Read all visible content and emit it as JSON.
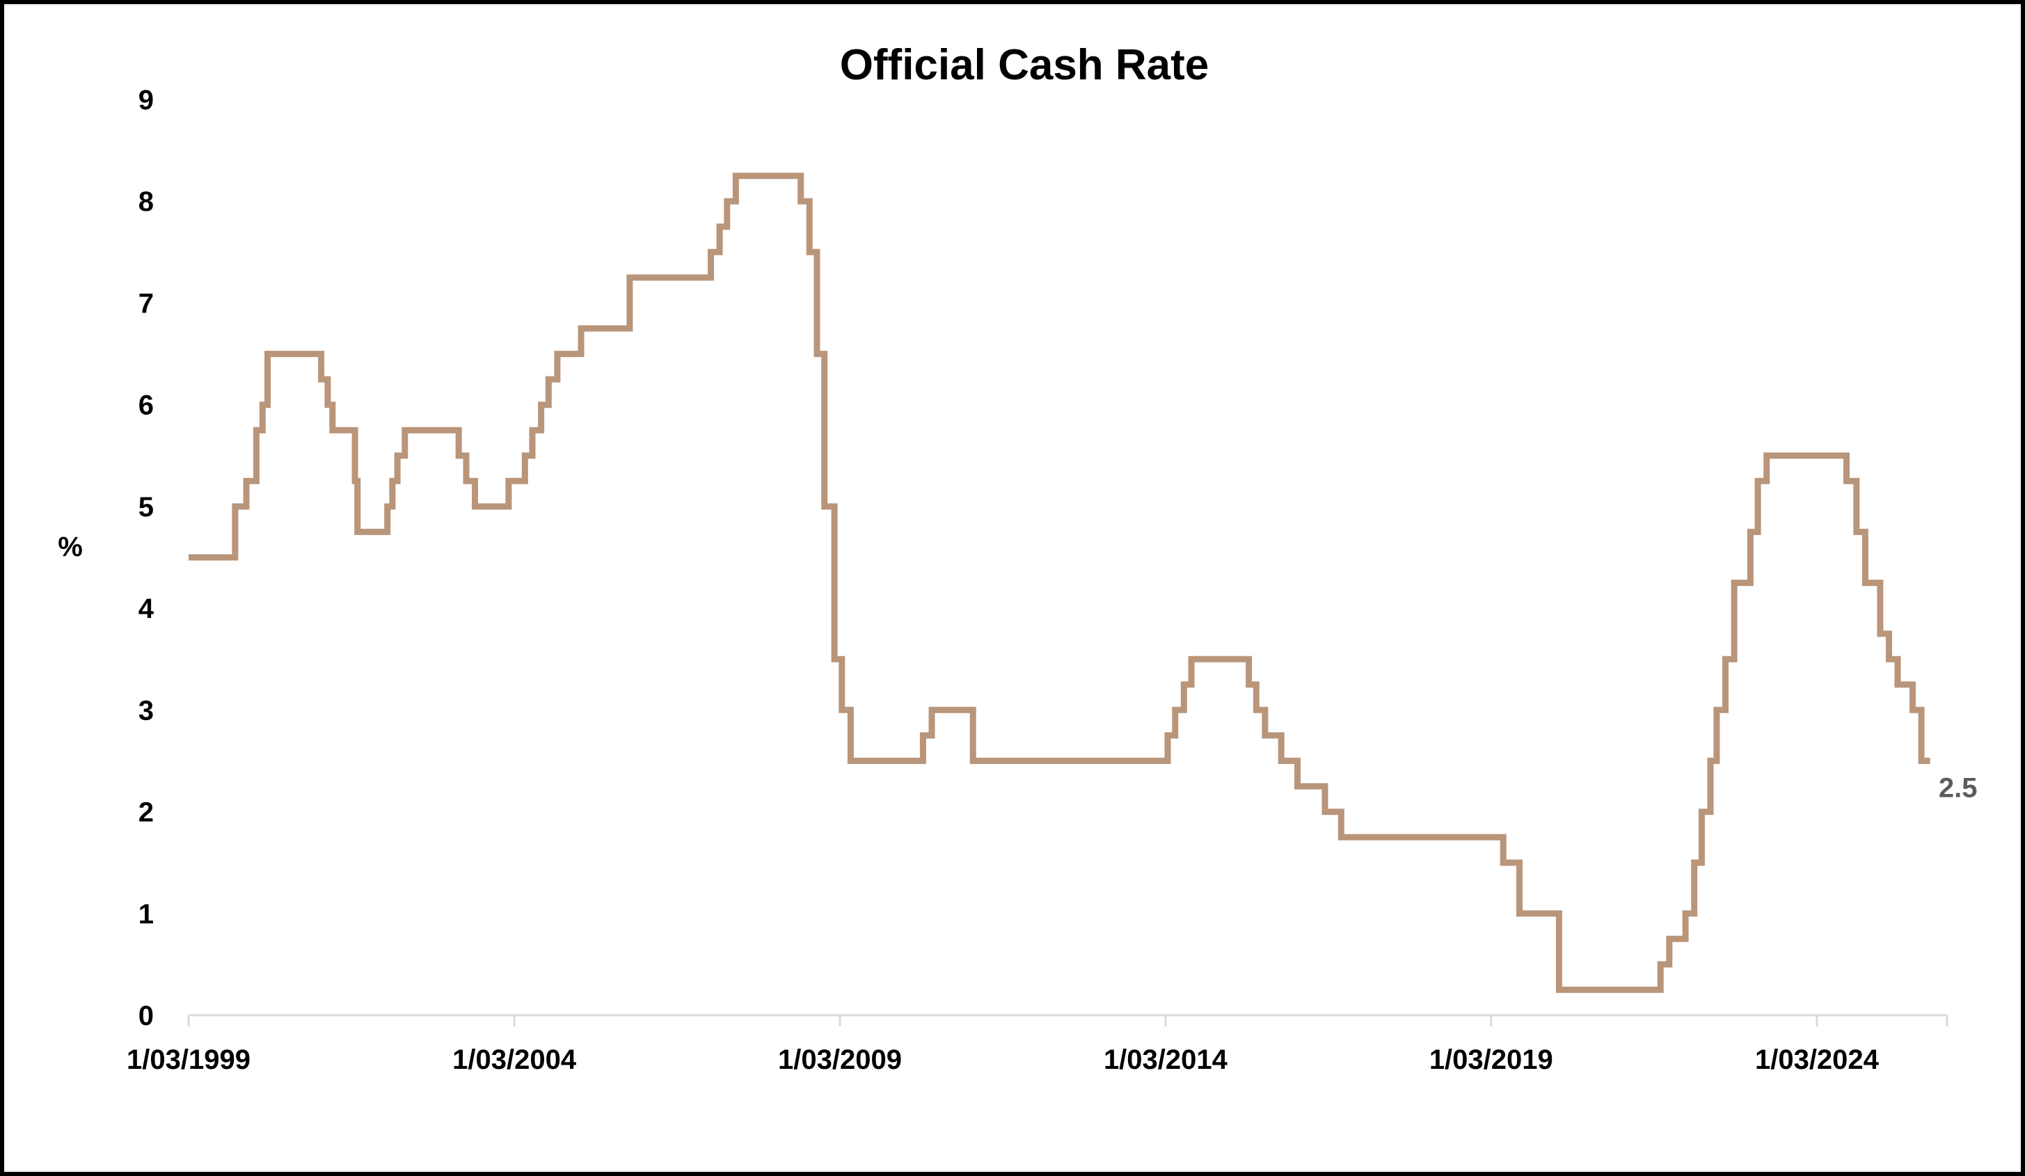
{
  "chart_data": {
    "type": "line",
    "title": "Official Cash Rate",
    "xlabel": "",
    "ylabel": "%",
    "ylim": [
      0,
      9
    ],
    "yticks": [
      0,
      1,
      2,
      3,
      4,
      5,
      6,
      7,
      8,
      9
    ],
    "xlim": [
      "1999-03-01",
      "2026-03-01"
    ],
    "xtick_labels": [
      "1/03/1999",
      "1/03/2004",
      "1/03/2009",
      "1/03/2014",
      "1/03/2019",
      "1/03/2024"
    ],
    "xtick_dates": [
      "1999-03-01",
      "2004-03-01",
      "2009-03-01",
      "2014-03-01",
      "2019-03-01",
      "2024-03-01"
    ],
    "grid": false,
    "legend": "none",
    "line_color": "#B9957A",
    "axis_color": "#D9D9D9",
    "end_label": "2.5",
    "series": [
      {
        "points": [
          [
            "1999-03-01",
            4.5
          ],
          [
            "1999-11-17",
            4.5
          ],
          [
            "1999-11-17",
            5.0
          ],
          [
            "2000-01-19",
            5.0
          ],
          [
            "2000-01-19",
            5.25
          ],
          [
            "2000-03-15",
            5.25
          ],
          [
            "2000-03-15",
            5.75
          ],
          [
            "2000-04-19",
            5.75
          ],
          [
            "2000-04-19",
            6.0
          ],
          [
            "2000-05-17",
            6.0
          ],
          [
            "2000-05-17",
            6.5
          ],
          [
            "2001-03-14",
            6.5
          ],
          [
            "2001-03-14",
            6.25
          ],
          [
            "2001-04-19",
            6.25
          ],
          [
            "2001-04-19",
            6.0
          ],
          [
            "2001-05-16",
            6.0
          ],
          [
            "2001-05-16",
            5.75
          ],
          [
            "2001-09-19",
            5.75
          ],
          [
            "2001-09-19",
            5.25
          ],
          [
            "2001-10-03",
            5.25
          ],
          [
            "2001-10-03",
            4.75
          ],
          [
            "2002-03-20",
            4.75
          ],
          [
            "2002-03-20",
            5.0
          ],
          [
            "2002-04-17",
            5.0
          ],
          [
            "2002-04-17",
            5.25
          ],
          [
            "2002-05-15",
            5.25
          ],
          [
            "2002-05-15",
            5.5
          ],
          [
            "2002-06-26",
            5.5
          ],
          [
            "2002-06-26",
            5.75
          ],
          [
            "2003-04-24",
            5.75
          ],
          [
            "2003-04-24",
            5.5
          ],
          [
            "2003-06-05",
            5.5
          ],
          [
            "2003-06-05",
            5.25
          ],
          [
            "2003-07-24",
            5.25
          ],
          [
            "2003-07-24",
            5.0
          ],
          [
            "2004-01-29",
            5.0
          ],
          [
            "2004-01-29",
            5.25
          ],
          [
            "2004-04-29",
            5.25
          ],
          [
            "2004-04-29",
            5.5
          ],
          [
            "2004-06-10",
            5.5
          ],
          [
            "2004-06-10",
            5.75
          ],
          [
            "2004-07-29",
            5.75
          ],
          [
            "2004-07-29",
            6.0
          ],
          [
            "2004-09-09",
            6.0
          ],
          [
            "2004-09-09",
            6.25
          ],
          [
            "2004-10-28",
            6.25
          ],
          [
            "2004-10-28",
            6.5
          ],
          [
            "2005-03-10",
            6.5
          ],
          [
            "2005-03-10",
            6.75
          ],
          [
            "2005-12-08",
            6.75
          ],
          [
            "2005-12-08",
            7.25
          ],
          [
            "2007-03-08",
            7.25
          ],
          [
            "2007-03-08",
            7.5
          ],
          [
            "2007-04-26",
            7.5
          ],
          [
            "2007-04-26",
            7.75
          ],
          [
            "2007-06-07",
            7.75
          ],
          [
            "2007-06-07",
            8.0
          ],
          [
            "2007-07-26",
            8.0
          ],
          [
            "2007-07-26",
            8.25
          ],
          [
            "2008-07-24",
            8.25
          ],
          [
            "2008-07-24",
            8.0
          ],
          [
            "2008-09-11",
            8.0
          ],
          [
            "2008-09-11",
            7.5
          ],
          [
            "2008-10-23",
            7.5
          ],
          [
            "2008-10-23",
            6.5
          ],
          [
            "2008-12-04",
            6.5
          ],
          [
            "2008-12-04",
            5.0
          ],
          [
            "2009-01-29",
            5.0
          ],
          [
            "2009-01-29",
            3.5
          ],
          [
            "2009-03-12",
            3.5
          ],
          [
            "2009-03-12",
            3.0
          ],
          [
            "2009-04-30",
            3.0
          ],
          [
            "2009-04-30",
            2.5
          ],
          [
            "2010-06-10",
            2.5
          ],
          [
            "2010-06-10",
            2.75
          ],
          [
            "2010-07-29",
            2.75
          ],
          [
            "2010-07-29",
            3.0
          ],
          [
            "2011-03-17",
            3.0
          ],
          [
            "2011-03-17",
            2.5
          ],
          [
            "2014-03-13",
            2.5
          ],
          [
            "2014-03-13",
            2.75
          ],
          [
            "2014-04-24",
            2.75
          ],
          [
            "2014-04-24",
            3.0
          ],
          [
            "2014-06-12",
            3.0
          ],
          [
            "2014-06-12",
            3.25
          ],
          [
            "2014-07-24",
            3.25
          ],
          [
            "2014-07-24",
            3.5
          ],
          [
            "2015-06-11",
            3.5
          ],
          [
            "2015-06-11",
            3.25
          ],
          [
            "2015-07-23",
            3.25
          ],
          [
            "2015-07-23",
            3.0
          ],
          [
            "2015-09-10",
            3.0
          ],
          [
            "2015-09-10",
            2.75
          ],
          [
            "2015-12-10",
            2.75
          ],
          [
            "2015-12-10",
            2.5
          ],
          [
            "2016-03-10",
            2.5
          ],
          [
            "2016-03-10",
            2.25
          ],
          [
            "2016-08-11",
            2.25
          ],
          [
            "2016-08-11",
            2.0
          ],
          [
            "2016-11-10",
            2.0
          ],
          [
            "2016-11-10",
            1.75
          ],
          [
            "2019-05-08",
            1.75
          ],
          [
            "2019-05-08",
            1.5
          ],
          [
            "2019-08-07",
            1.5
          ],
          [
            "2019-08-07",
            1.0
          ],
          [
            "2020-03-16",
            1.0
          ],
          [
            "2020-03-16",
            0.25
          ],
          [
            "2021-10-06",
            0.25
          ],
          [
            "2021-10-06",
            0.5
          ],
          [
            "2021-11-24",
            0.5
          ],
          [
            "2021-11-24",
            0.75
          ],
          [
            "2022-02-23",
            0.75
          ],
          [
            "2022-02-23",
            1.0
          ],
          [
            "2022-04-13",
            1.0
          ],
          [
            "2022-04-13",
            1.5
          ],
          [
            "2022-05-25",
            1.5
          ],
          [
            "2022-05-25",
            2.0
          ],
          [
            "2022-07-13",
            2.0
          ],
          [
            "2022-07-13",
            2.5
          ],
          [
            "2022-08-17",
            2.5
          ],
          [
            "2022-08-17",
            3.0
          ],
          [
            "2022-10-05",
            3.0
          ],
          [
            "2022-10-05",
            3.5
          ],
          [
            "2022-11-23",
            3.5
          ],
          [
            "2022-11-23",
            4.25
          ],
          [
            "2023-02-22",
            4.25
          ],
          [
            "2023-02-22",
            4.75
          ],
          [
            "2023-04-05",
            4.75
          ],
          [
            "2023-04-05",
            5.25
          ],
          [
            "2023-05-24",
            5.25
          ],
          [
            "2023-05-24",
            5.5
          ],
          [
            "2024-08-14",
            5.5
          ],
          [
            "2024-08-14",
            5.25
          ],
          [
            "2024-10-09",
            5.25
          ],
          [
            "2024-10-09",
            4.75
          ],
          [
            "2024-11-27",
            4.75
          ],
          [
            "2024-11-27",
            4.25
          ],
          [
            "2025-02-19",
            4.25
          ],
          [
            "2025-02-19",
            3.75
          ],
          [
            "2025-04-09",
            3.75
          ],
          [
            "2025-04-09",
            3.5
          ],
          [
            "2025-05-28",
            3.5
          ],
          [
            "2025-05-28",
            3.25
          ],
          [
            "2025-08-20",
            3.25
          ],
          [
            "2025-08-20",
            3.0
          ],
          [
            "2025-10-08",
            3.0
          ],
          [
            "2025-10-08",
            2.5
          ],
          [
            "2025-11-26",
            2.5
          ]
        ]
      }
    ]
  }
}
